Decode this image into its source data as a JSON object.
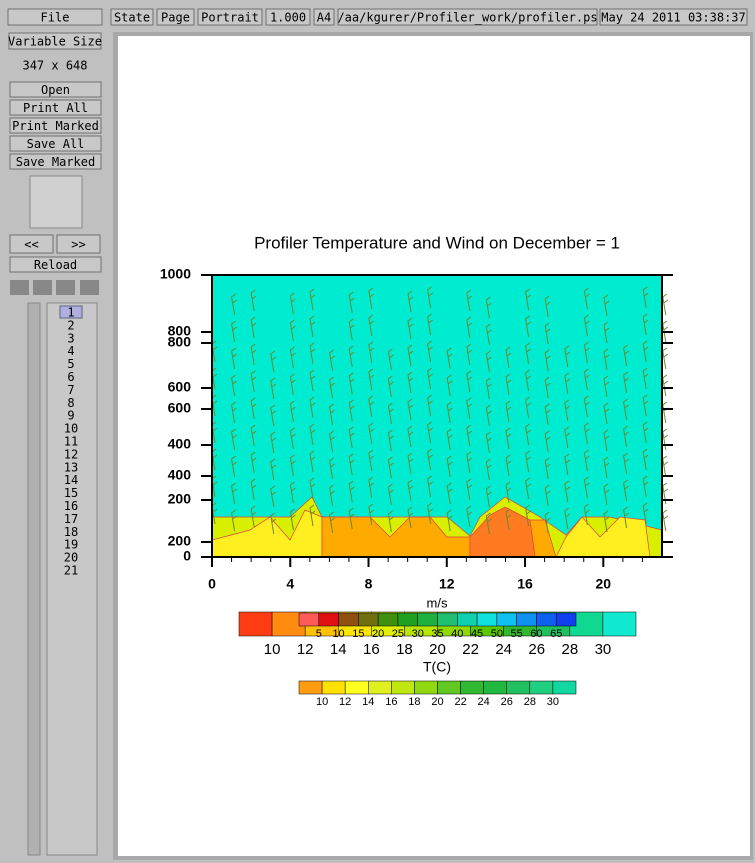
{
  "toolbar": {
    "file": "File",
    "state": "State",
    "page": "Page",
    "orientation": "Portrait",
    "scale": "1.000",
    "paper": "A4",
    "path": "/aa/kgurer/Profiler_work/profiler.ps",
    "date": "May 24 2011 03:38:37"
  },
  "sidebar": {
    "size_mode": "Variable Size",
    "dimensions": "347 x 648",
    "buttons": [
      "Open",
      "Print All",
      "Print Marked",
      "Save All",
      "Save Marked"
    ],
    "prev": "<<",
    "next": ">>",
    "reload": "Reload",
    "pages": [
      1,
      2,
      3,
      4,
      5,
      6,
      7,
      8,
      9,
      10,
      11,
      12,
      13,
      14,
      15,
      16,
      17,
      18,
      19,
      20,
      21
    ],
    "selected_page": 1
  },
  "plot": {
    "title": "Profiler Temperature and Wind on December = 1",
    "y_labels": [
      "1000",
      "800",
      "800",
      "600",
      "600",
      "400",
      "400",
      "200",
      "200",
      "0"
    ],
    "xlim": [
      0,
      23
    ],
    "xticks": [
      0,
      4,
      8,
      12,
      16,
      20
    ],
    "wind_bar": {
      "title": "m/s",
      "labels": [
        5,
        10,
        15,
        20,
        25,
        30,
        35,
        40,
        45,
        50,
        55,
        60,
        65
      ],
      "colors": [
        "#ff5a5a",
        "#e01010",
        "#905010",
        "#707010",
        "#409010",
        "#20a020",
        "#20b040",
        "#20c070",
        "#10d0b0",
        "#10e0e0",
        "#10c0f0",
        "#1090f0",
        "#1060f0",
        "#1040f0"
      ]
    },
    "temp_bar": {
      "title": "T(C)",
      "labels": [
        10,
        12,
        14,
        16,
        18,
        20,
        22,
        24,
        26,
        28,
        30
      ],
      "colors": [
        "#ff3c14",
        "#ff8c10",
        "#ffc000",
        "#ffe600",
        "#e0f000",
        "#b8e600",
        "#90d800",
        "#5cc800",
        "#30b830",
        "#20c060",
        "#10d890",
        "#10e8d0"
      ]
    },
    "temp_bar2": {
      "labels": [
        10,
        12,
        14,
        16,
        18,
        20,
        22,
        24,
        26,
        28,
        30
      ],
      "colors": [
        "#ff9c10",
        "#ffe000",
        "#ffff20",
        "#e0f020",
        "#c0e810",
        "#90d810",
        "#60c820",
        "#30b830",
        "#20b840",
        "#20c060",
        "#20d080",
        "#10d8a0"
      ]
    }
  }
}
